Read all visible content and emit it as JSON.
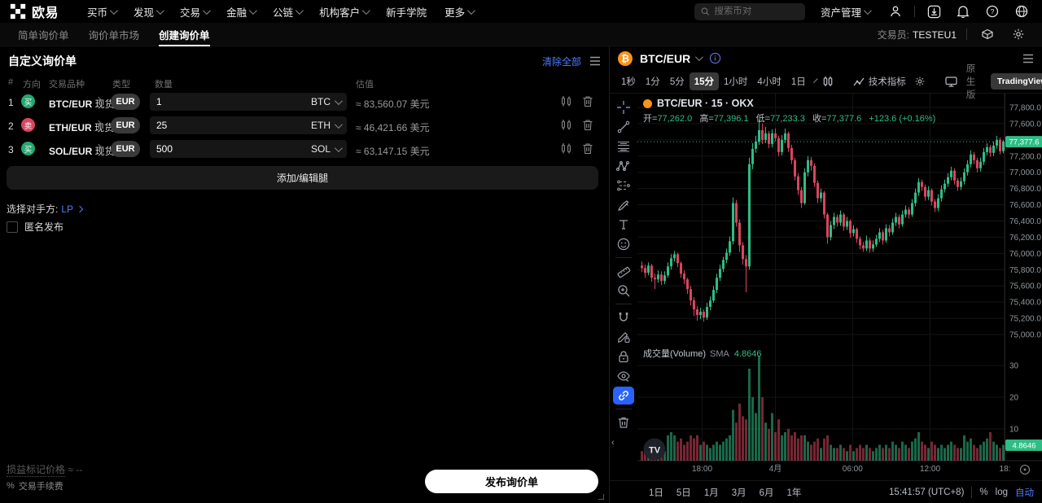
{
  "topnav": {
    "logo_text": "欧易",
    "menu": [
      {
        "label": "买币",
        "chevron": true
      },
      {
        "label": "发现",
        "chevron": true
      },
      {
        "label": "交易",
        "chevron": true
      },
      {
        "label": "金融",
        "chevron": true
      },
      {
        "label": "公链",
        "chevron": true
      },
      {
        "label": "机构客户",
        "chevron": true
      },
      {
        "label": "新手学院",
        "chevron": false
      },
      {
        "label": "更多",
        "chevron": true
      }
    ],
    "search_placeholder": "搜索币对",
    "assets_label": "资产管理"
  },
  "subnav": {
    "tabs": [
      {
        "label": "简单询价单",
        "active": false
      },
      {
        "label": "询价单市场",
        "active": false
      },
      {
        "label": "创建询价单",
        "active": true
      }
    ],
    "trader_label": "交易员:",
    "trader_value": "TESTEU1"
  },
  "rfq": {
    "title": "自定义询价单",
    "clear_all": "清除全部",
    "columns": {
      "index": "#",
      "side": "方向",
      "pair": "交易品种",
      "type": "类型",
      "qty": "数量",
      "value": "估值"
    },
    "legs": [
      {
        "index": "1",
        "side": "买",
        "side_type": "buy",
        "pair": "BTC/EUR",
        "market": "现货",
        "type": "EUR",
        "qty": "1",
        "unit": "BTC",
        "value": "≈ 83,560.07 美元"
      },
      {
        "index": "2",
        "side": "卖",
        "side_type": "sell",
        "pair": "ETH/EUR",
        "market": "现货",
        "type": "EUR",
        "qty": "25",
        "unit": "ETH",
        "value": "≈ 46,421.66 美元"
      },
      {
        "index": "3",
        "side": "买",
        "side_type": "buy",
        "pair": "SOL/EUR",
        "market": "现货",
        "type": "EUR",
        "qty": "500",
        "unit": "SOL",
        "value": "≈ 63,147.15 美元"
      }
    ],
    "add_button": "添加/编辑腿",
    "counterparty_label": "选择对手方:",
    "counterparty_value": "LP",
    "anonymous_label": "匿名发布",
    "pnl_label": "损益标记价格",
    "pnl_value": "≈ --",
    "fee_icon": "%",
    "fee_label": "交易手续费",
    "publish_button": "发布询价单"
  },
  "chart": {
    "symbol": "BTC/EUR",
    "coin_glyph": "₿",
    "timeframes": [
      "1秒",
      "1分",
      "5分",
      "15分",
      "1小时",
      "4小时",
      "1日"
    ],
    "active_timeframe": "15分",
    "indicators_label": "技术指标",
    "native_label": "原生版",
    "tv_label": "TradingView",
    "legend_title": "BTC/EUR · 15 · OKX",
    "ohlc": {
      "o_label": "开=",
      "o": "77,262.0",
      "h_label": "高=",
      "h": "77,396.1",
      "l_label": "低=",
      "l": "77,233.3",
      "c_label": "收=",
      "c": "77,377.6",
      "change": "+123.6 (+0.16%)"
    },
    "volume_label": "成交量(Volume)",
    "sma_label": "SMA",
    "sma_value": "4.8646",
    "toolbar_icons": [
      "crosshair",
      "trend-line",
      "fib-retracement",
      "xabcd-pattern",
      "forecast",
      "brush",
      "text",
      "emoji",
      "sep",
      "ruler",
      "zoom-in",
      "sep",
      "magnet",
      "edit-drawing",
      "lock-all",
      "hide-drawings",
      "sync-drawings",
      "sep",
      "remove-drawings"
    ],
    "active_tool": "sync-drawings",
    "footer_ranges": [
      "1日",
      "5日",
      "1月",
      "3月",
      "6月",
      "1年"
    ],
    "clock": "15:41:57 (UTC+8)",
    "percent_label": "%",
    "log_label": "log",
    "auto_label": "自动",
    "collapse_arrow": "‹"
  },
  "chart_data": {
    "type": "candlestick",
    "title": "BTC/EUR · 15 · OKX",
    "interval": "15m",
    "last_price": 77377.6,
    "last_change": "+123.6 (+0.16%)",
    "price_ticks": [
      77800,
      77600,
      77400,
      77200,
      77000,
      76800,
      76600,
      76400,
      76200,
      76000,
      75800,
      75600,
      75400,
      75200,
      75000
    ],
    "volume_ticks": [
      30,
      20,
      10
    ],
    "vol_sma": 4.8646,
    "time_ticks": [
      {
        "i": 18.5,
        "label": "18:00"
      },
      {
        "i": 41.0,
        "label": "4月"
      },
      {
        "i": 64.7,
        "label": "06:00"
      },
      {
        "i": 88.5,
        "label": "12:00"
      },
      {
        "i": 111.5,
        "label": "18:"
      }
    ],
    "colors": {
      "up": "#2ebd85",
      "down": "#d9455f",
      "grid": "#141414",
      "axis_text": "#8f979e",
      "price_label_bg": "#2ebd85"
    },
    "candles": [
      [
        75850,
        75900,
        75770,
        75820,
        3
      ],
      [
        75820,
        75860,
        75700,
        75760,
        4
      ],
      [
        75760,
        75890,
        75730,
        75850,
        3
      ],
      [
        75850,
        75870,
        75650,
        75700,
        5
      ],
      [
        75700,
        75750,
        75560,
        75680,
        6
      ],
      [
        75680,
        75790,
        75640,
        75740,
        3
      ],
      [
        75740,
        75780,
        75610,
        75660,
        4
      ],
      [
        75660,
        75780,
        75620,
        75730,
        3
      ],
      [
        75730,
        75890,
        75700,
        75840,
        8
      ],
      [
        75840,
        75990,
        75800,
        75940,
        9
      ],
      [
        75940,
        76030,
        75900,
        75990,
        8
      ],
      [
        75990,
        76010,
        75830,
        75880,
        6
      ],
      [
        75880,
        75900,
        75700,
        75750,
        7
      ],
      [
        75750,
        75790,
        75620,
        75680,
        5
      ],
      [
        75680,
        75700,
        75500,
        75560,
        6
      ],
      [
        75560,
        75600,
        75360,
        75420,
        8
      ],
      [
        75420,
        75460,
        75230,
        75310,
        7
      ],
      [
        75310,
        75350,
        75170,
        75240,
        8
      ],
      [
        75240,
        75330,
        75190,
        75280,
        5
      ],
      [
        75280,
        75310,
        75160,
        75210,
        6
      ],
      [
        75210,
        75390,
        75180,
        75340,
        5
      ],
      [
        75340,
        75470,
        75300,
        75420,
        4
      ],
      [
        75420,
        75600,
        75390,
        75550,
        5
      ],
      [
        75550,
        75750,
        75510,
        75700,
        6
      ],
      [
        75700,
        75860,
        75660,
        75810,
        5
      ],
      [
        75810,
        75960,
        75770,
        75920,
        6
      ],
      [
        75920,
        76060,
        75880,
        76010,
        7
      ],
      [
        76010,
        76210,
        75970,
        76150,
        8
      ],
      [
        76150,
        76690,
        76110,
        76620,
        16
      ],
      [
        76620,
        76660,
        76330,
        76380,
        12
      ],
      [
        76380,
        76420,
        76020,
        76100,
        18
      ],
      [
        76100,
        76140,
        75860,
        75930,
        14
      ],
      [
        75930,
        75980,
        75520,
        75840,
        13
      ],
      [
        75840,
        77180,
        75800,
        77100,
        29
      ],
      [
        77100,
        77360,
        77040,
        77290,
        20
      ],
      [
        77290,
        77450,
        77240,
        77380,
        15
      ],
      [
        77380,
        77650,
        77340,
        77520,
        33
      ],
      [
        77520,
        77600,
        77350,
        77400,
        20
      ],
      [
        77400,
        77560,
        77360,
        77480,
        12
      ],
      [
        77480,
        77510,
        77300,
        77350,
        10
      ],
      [
        77350,
        77530,
        77310,
        77480,
        15
      ],
      [
        77480,
        77540,
        77380,
        77420,
        9
      ],
      [
        77420,
        77450,
        77200,
        77250,
        13
      ],
      [
        77250,
        77460,
        77210,
        77400,
        8
      ],
      [
        77400,
        77540,
        77360,
        77480,
        9
      ],
      [
        77480,
        77500,
        77250,
        77300,
        10
      ],
      [
        77300,
        77340,
        77100,
        77150,
        8
      ],
      [
        77150,
        77180,
        76900,
        76950,
        9
      ],
      [
        76950,
        76990,
        76720,
        76780,
        7
      ],
      [
        76780,
        76820,
        76560,
        76620,
        8
      ],
      [
        76620,
        77050,
        76600,
        77000,
        8
      ],
      [
        77000,
        77200,
        76950,
        77150,
        6
      ],
      [
        77150,
        77190,
        77020,
        77080,
        5
      ],
      [
        77080,
        77110,
        76820,
        76870,
        6
      ],
      [
        76870,
        76900,
        76620,
        76680,
        7
      ],
      [
        76680,
        76800,
        76630,
        76750,
        4
      ],
      [
        76750,
        76770,
        76430,
        76480,
        7
      ],
      [
        76480,
        76500,
        76120,
        76200,
        8
      ],
      [
        76200,
        76400,
        76160,
        76350,
        5
      ],
      [
        76350,
        76500,
        76300,
        76450,
        4
      ],
      [
        76450,
        76480,
        76330,
        76380,
        4
      ],
      [
        76380,
        76530,
        76340,
        76480,
        5
      ],
      [
        76480,
        76500,
        76280,
        76330,
        4
      ],
      [
        76330,
        76450,
        76290,
        76400,
        3
      ],
      [
        76400,
        76420,
        76190,
        76250,
        5
      ],
      [
        76250,
        76350,
        76210,
        76300,
        3
      ],
      [
        76300,
        76320,
        76130,
        76180,
        4
      ],
      [
        76180,
        76210,
        76050,
        76100,
        5
      ],
      [
        76100,
        76140,
        76020,
        76060,
        4
      ],
      [
        76060,
        76220,
        76030,
        76160,
        5
      ],
      [
        76160,
        76190,
        76010,
        76060,
        4
      ],
      [
        76060,
        76160,
        76020,
        76110,
        3
      ],
      [
        76110,
        76230,
        76080,
        76180,
        4
      ],
      [
        76180,
        76310,
        76140,
        76260,
        5
      ],
      [
        76260,
        76290,
        76110,
        76160,
        4
      ],
      [
        76160,
        76360,
        76130,
        76310,
        5
      ],
      [
        76310,
        76350,
        76210,
        76260,
        4
      ],
      [
        76260,
        76430,
        76230,
        76380,
        6
      ],
      [
        76380,
        76500,
        76340,
        76450,
        5
      ],
      [
        76450,
        76480,
        76310,
        76360,
        4
      ],
      [
        76360,
        76530,
        76330,
        76480,
        6
      ],
      [
        76480,
        76590,
        76440,
        76540,
        5
      ],
      [
        76540,
        76570,
        76430,
        76480,
        4
      ],
      [
        76480,
        76670,
        76450,
        76620,
        6
      ],
      [
        76620,
        76800,
        76580,
        76750,
        7
      ],
      [
        76750,
        76930,
        76710,
        76880,
        9
      ],
      [
        76880,
        76910,
        76770,
        76820,
        6
      ],
      [
        76820,
        76850,
        76650,
        76700,
        5
      ],
      [
        76700,
        76830,
        76660,
        76780,
        4
      ],
      [
        76780,
        76800,
        76590,
        76640,
        6
      ],
      [
        76640,
        76670,
        76510,
        76560,
        5
      ],
      [
        76560,
        76730,
        76520,
        76680,
        4
      ],
      [
        76680,
        76840,
        76640,
        76790,
        5
      ],
      [
        76790,
        76910,
        76750,
        76860,
        4
      ],
      [
        76860,
        76990,
        76820,
        76940,
        5
      ],
      [
        76940,
        77070,
        76900,
        77020,
        6
      ],
      [
        77020,
        77050,
        76850,
        76900,
        5
      ],
      [
        76900,
        76930,
        76770,
        76820,
        4
      ],
      [
        76820,
        76940,
        76780,
        76890,
        4
      ],
      [
        76890,
        77050,
        76850,
        77000,
        8
      ],
      [
        77000,
        77150,
        76960,
        77100,
        6
      ],
      [
        77100,
        77270,
        77060,
        77220,
        7
      ],
      [
        77220,
        77250,
        77100,
        77150,
        5
      ],
      [
        77150,
        77180,
        77000,
        77050,
        4
      ],
      [
        77050,
        77180,
        77010,
        77130,
        5
      ],
      [
        77130,
        77300,
        77090,
        77250,
        6
      ],
      [
        77250,
        77360,
        77210,
        77310,
        7
      ],
      [
        77310,
        77340,
        77190,
        77240,
        9
      ],
      [
        77240,
        77380,
        77200,
        77330,
        6
      ],
      [
        77330,
        77450,
        77290,
        77400,
        5
      ],
      [
        77400,
        77430,
        77220,
        77260,
        4
      ],
      [
        77262,
        77396.1,
        77233.3,
        77377.6,
        5
      ]
    ]
  }
}
